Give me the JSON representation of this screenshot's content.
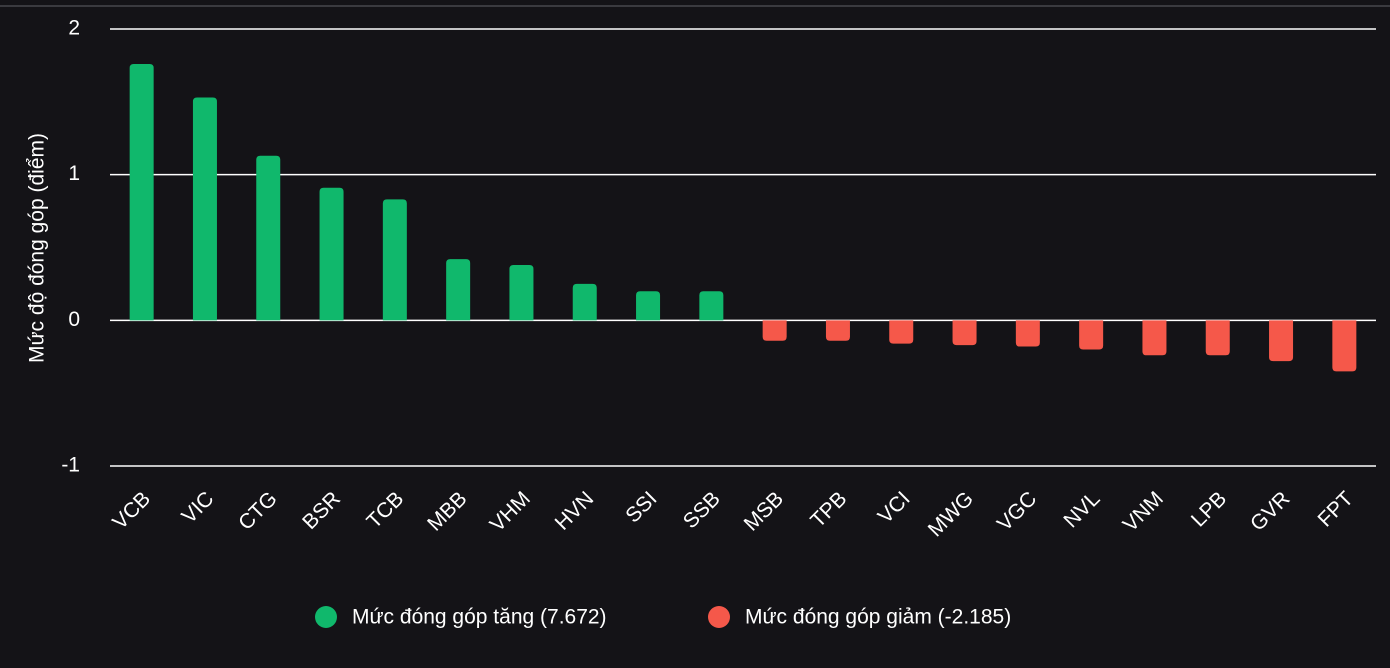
{
  "chart_data": {
    "type": "bar",
    "y_label": "Mức độ đóng góp (điểm)",
    "categories": [
      "VCB",
      "VIC",
      "CTG",
      "BSR",
      "TCB",
      "MBB",
      "VHM",
      "HVN",
      "SSI",
      "SSB",
      "MSB",
      "TPB",
      "VCI",
      "MWG",
      "VGC",
      "NVL",
      "VNM",
      "LPB",
      "GVR",
      "FPT"
    ],
    "series": [
      {
        "name": "Mức đóng góp tăng (7.672)",
        "color": "#10b86c",
        "values": [
          1.76,
          1.53,
          1.13,
          0.91,
          0.83,
          0.42,
          0.38,
          0.25,
          0.2,
          0.2,
          null,
          null,
          null,
          null,
          null,
          null,
          null,
          null,
          null,
          null
        ]
      },
      {
        "name": "Mức đóng góp giảm (-2.185)",
        "color": "#f5584a",
        "values": [
          null,
          null,
          null,
          null,
          null,
          null,
          null,
          null,
          null,
          null,
          -0.14,
          -0.14,
          -0.16,
          -0.17,
          -0.18,
          -0.2,
          -0.24,
          -0.24,
          -0.28,
          -0.35
        ]
      }
    ],
    "ylim": [
      -1,
      2
    ],
    "yticks": [
      -1,
      0,
      1,
      2
    ],
    "grid": true,
    "legend": "bottom"
  }
}
